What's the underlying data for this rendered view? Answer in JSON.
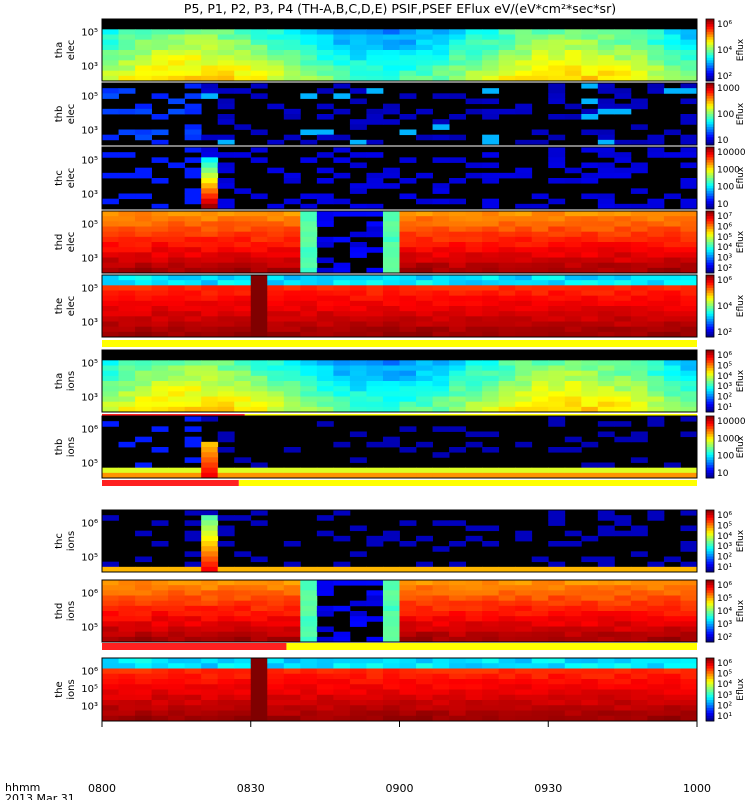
{
  "title": "P5, P1, P2, P3, P4 (TH-A,B,C,D,E) PSIF,PSEF EFlux eV/(eV*cm²*sec*sr)",
  "footer": {
    "label1": "hhmm",
    "label2": "2013 Mar 31"
  },
  "chart_data": {
    "type": "heatmap",
    "x_ticks": [
      "0800",
      "0830",
      "0900",
      "0930",
      "1000"
    ],
    "x_range": [
      "0800",
      "1000"
    ],
    "colorbar_label": "Eflux",
    "panels": [
      {
        "id": "tha-elec",
        "label1": "tha",
        "label2": "elec",
        "ticks": [
          "10⁵",
          "10³"
        ],
        "cbar_ticks": [
          "10⁶",
          "10⁴",
          "10²"
        ],
        "profile": "ion-low",
        "bars": []
      },
      {
        "id": "thb-elec",
        "label1": "thb",
        "label2": "elec",
        "ticks": [
          "10⁵",
          "10³"
        ],
        "cbar_ticks": [
          "1000",
          "100",
          "10"
        ],
        "profile": "sparse-b",
        "bars": []
      },
      {
        "id": "thc-elec",
        "label1": "thc",
        "label2": "elec",
        "ticks": [
          "10⁵",
          "10³"
        ],
        "cbar_ticks": [
          "10000",
          "1000",
          "100",
          "10"
        ],
        "profile": "sparse-c",
        "bars": []
      },
      {
        "id": "thd-elec",
        "label1": "thd",
        "label2": "elec",
        "ticks": [
          "10⁵",
          "10³"
        ],
        "cbar_ticks": [
          "10⁷",
          "10⁶",
          "10⁵",
          "10⁴",
          "10³",
          "10²"
        ],
        "profile": "thd",
        "bars": []
      },
      {
        "id": "the-elec",
        "label1": "the",
        "label2": "elec",
        "ticks": [
          "10⁵",
          "10³"
        ],
        "cbar_ticks": [
          "10⁶",
          "10⁴",
          "10²"
        ],
        "profile": "the",
        "bars": [
          {
            "color": "yellow",
            "start": 0,
            "end": 1
          }
        ]
      },
      {
        "id": "tha-ions",
        "label1": "tha",
        "label2": "ions",
        "ticks": [
          "10⁵",
          "10³"
        ],
        "cbar_ticks": [
          "10⁶",
          "10⁵",
          "10⁴",
          "10³",
          "10²",
          "10¹"
        ],
        "profile": "ion-low",
        "bars": [
          {
            "color": "red",
            "start": 0,
            "end": 0.24
          },
          {
            "color": "yellow",
            "start": 0.24,
            "end": 1
          }
        ]
      },
      {
        "id": "thb-ions",
        "label1": "thb",
        "label2": "ions",
        "ticks": [
          "10⁶",
          "10⁵"
        ],
        "cbar_ticks": [
          "10000",
          "1000",
          "100",
          "10"
        ],
        "profile": "thb-ions",
        "bars": [
          {
            "color": "red",
            "start": 0,
            "end": 0.23
          },
          {
            "color": "yellow",
            "start": 0.23,
            "end": 1
          }
        ]
      },
      {
        "id": "thc-ions",
        "label1": "thc",
        "label2": "ions",
        "ticks": [
          "10⁶",
          "10⁵"
        ],
        "cbar_ticks": [
          "10⁶",
          "10⁵",
          "10⁴",
          "10³",
          "10²",
          "10¹"
        ],
        "profile": "thc-ions",
        "bars": [
          {
            "color": "yellow",
            "start": 0,
            "end": 1
          }
        ]
      },
      {
        "id": "thd-ions",
        "label1": "thd",
        "label2": "ions",
        "ticks": [
          "10⁶",
          "10⁵"
        ],
        "cbar_ticks": [
          "10⁶",
          "10⁵",
          "10⁴",
          "10³",
          "10²"
        ],
        "profile": "thd",
        "bars": [
          {
            "color": "red",
            "start": 0,
            "end": 0.31
          },
          {
            "color": "yellow",
            "start": 0.31,
            "end": 1
          }
        ]
      },
      {
        "id": "the-ions",
        "label1": "the",
        "label2": "ions",
        "ticks": [
          "10⁶",
          "10⁵",
          "10³"
        ],
        "cbar_ticks": [
          "10⁶",
          "10⁵",
          "10⁴",
          "10³",
          "10²",
          "10¹"
        ],
        "profile": "the",
        "bars": []
      }
    ]
  }
}
